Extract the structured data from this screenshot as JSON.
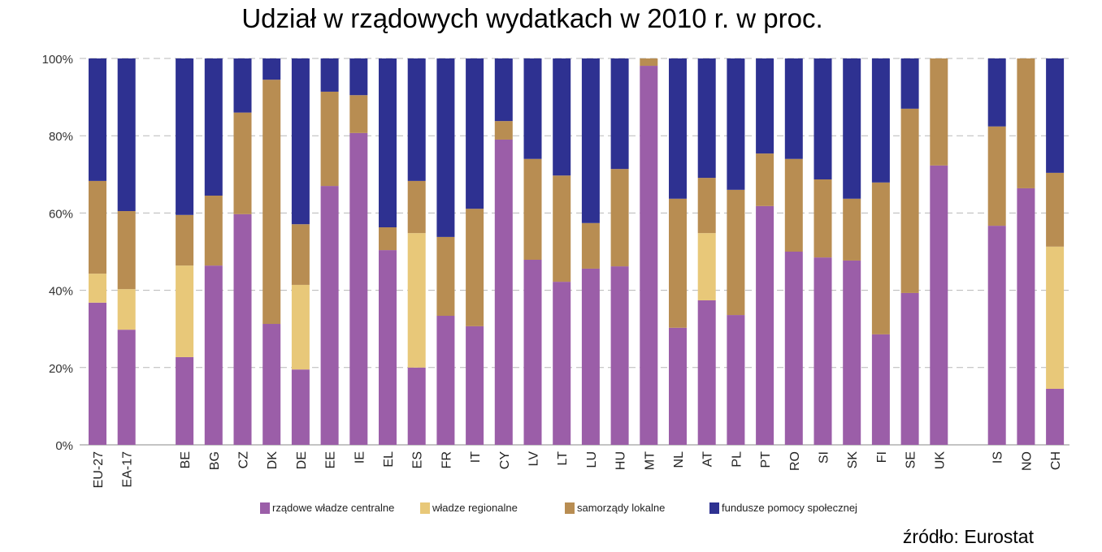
{
  "chart_data": {
    "type": "bar",
    "stacked": true,
    "title": "Udział w rządowych wydatkach w 2010 r. w proc.",
    "xlabel": "",
    "ylabel": "",
    "ylim": [
      0,
      100
    ],
    "yticks": [
      "0%",
      "20%",
      "40%",
      "60%",
      "80%",
      "100%"
    ],
    "grid": true,
    "legend_position": "bottom",
    "categories": [
      "EU-27",
      "EA-17",
      "BE",
      "BG",
      "CZ",
      "DK",
      "DE",
      "EE",
      "IE",
      "EL",
      "ES",
      "FR",
      "IT",
      "CY",
      "LV",
      "LT",
      "LU",
      "HU",
      "MT",
      "NL",
      "AT",
      "PL",
      "PT",
      "RO",
      "SI",
      "SK",
      "FI",
      "SE",
      "UK",
      "IS",
      "NO",
      "CH"
    ],
    "series": [
      {
        "name": "rządowe władze centralne",
        "color": "#9b5ea8",
        "values": [
          36.8,
          29.8,
          22.7,
          46.4,
          59.7,
          31.3,
          19.5,
          67.0,
          80.7,
          50.4,
          20.0,
          33.4,
          30.7,
          79.0,
          47.9,
          42.2,
          45.6,
          46.2,
          98.1,
          30.3,
          37.4,
          33.6,
          61.8,
          50.0,
          48.5,
          47.7,
          28.6,
          39.3,
          72.3,
          56.7,
          66.4,
          14.5
        ]
      },
      {
        "name": "władze regionalne",
        "color": "#e8c879",
        "values": [
          7.5,
          10.5,
          23.7,
          0,
          0,
          0,
          21.9,
          0,
          0,
          0,
          34.8,
          0,
          0,
          0,
          0,
          0,
          0,
          0,
          0,
          0,
          17.4,
          0,
          0,
          0,
          0,
          0,
          0,
          0,
          0,
          0,
          0,
          36.8
        ]
      },
      {
        "name": "samorządy lokalne",
        "color": "#b88d52",
        "values": [
          24.0,
          20.2,
          13.1,
          18.1,
          26.3,
          63.2,
          15.7,
          24.4,
          9.8,
          5.9,
          13.5,
          20.4,
          30.4,
          4.8,
          26.1,
          27.5,
          11.8,
          25.2,
          1.9,
          33.4,
          14.3,
          32.4,
          13.6,
          24.0,
          20.2,
          16.0,
          39.3,
          47.7,
          27.7,
          25.7,
          33.6,
          19.1
        ]
      },
      {
        "name": "fundusze pomocy społecznej",
        "color": "#2e3191",
        "values": [
          31.7,
          39.5,
          40.5,
          35.5,
          14.0,
          5.5,
          42.9,
          8.6,
          9.5,
          43.7,
          31.7,
          46.2,
          38.9,
          16.2,
          26.0,
          30.3,
          42.6,
          28.6,
          0,
          36.3,
          30.9,
          34.0,
          24.6,
          26.0,
          31.3,
          36.3,
          32.1,
          13.0,
          0,
          17.6,
          0,
          29.6
        ]
      }
    ]
  },
  "source": "źródło: Eurostat"
}
